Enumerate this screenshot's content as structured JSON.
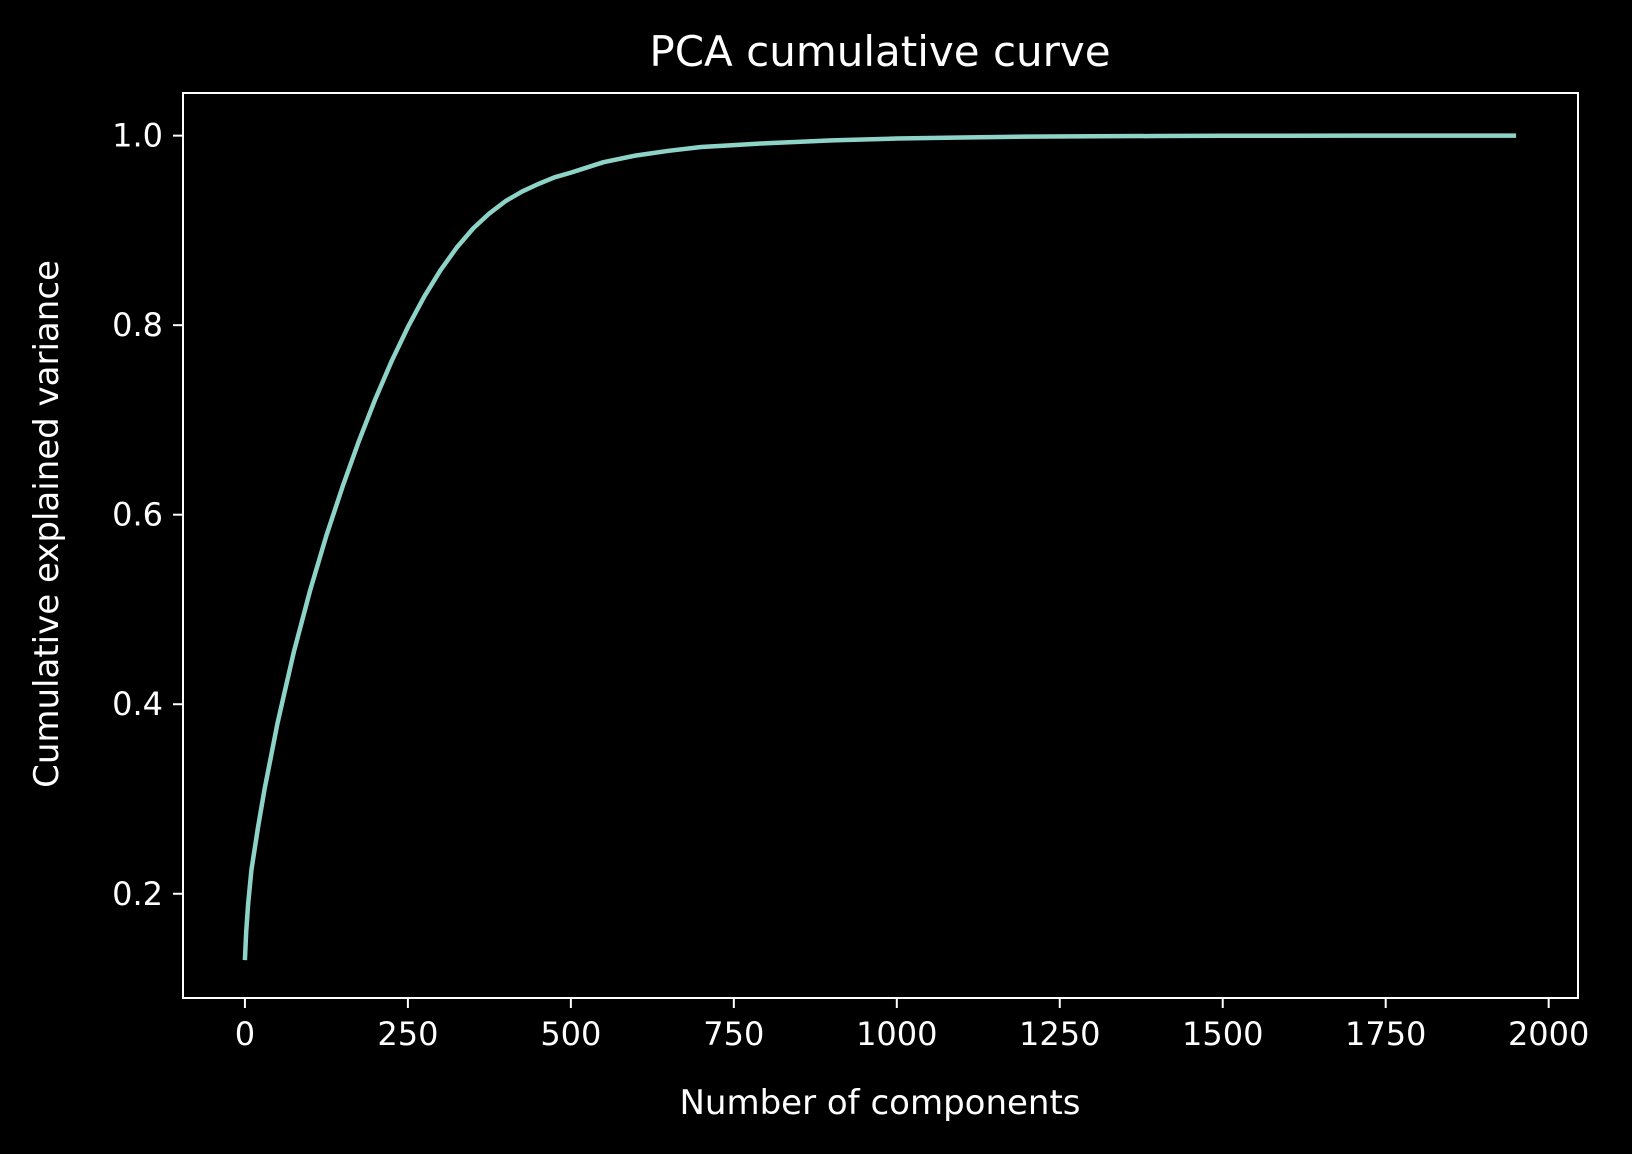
{
  "chart_data": {
    "type": "line",
    "title": "PCA cumulative curve",
    "xlabel": "Number of components",
    "ylabel": "Cumulative explained variance",
    "xlim": [
      -95,
      2045
    ],
    "ylim": [
      0.09,
      1.045
    ],
    "xticks": [
      0,
      250,
      500,
      750,
      1000,
      1250,
      1500,
      1750,
      2000
    ],
    "xtick_labels": [
      "0",
      "250",
      "500",
      "750",
      "1000",
      "1250",
      "1500",
      "1750",
      "2000"
    ],
    "yticks": [
      0.2,
      0.4,
      0.6,
      0.8,
      1.0
    ],
    "ytick_labels": [
      "0.2",
      "0.4",
      "0.6",
      "0.8",
      "1.0"
    ],
    "grid": false,
    "series": [
      {
        "color": "#8dd3c7",
        "x": [
          0,
          2,
          5,
          10,
          20,
          30,
          40,
          50,
          60,
          75,
          100,
          125,
          150,
          175,
          200,
          225,
          250,
          275,
          300,
          325,
          350,
          375,
          400,
          425,
          450,
          475,
          500,
          550,
          600,
          650,
          700,
          750,
          800,
          900,
          1000,
          1100,
          1200,
          1300,
          1400,
          1500,
          1600,
          1700,
          1800,
          1900,
          1950
        ],
        "y": [
          0.13,
          0.16,
          0.19,
          0.225,
          0.27,
          0.31,
          0.345,
          0.38,
          0.41,
          0.455,
          0.52,
          0.578,
          0.63,
          0.678,
          0.722,
          0.762,
          0.798,
          0.83,
          0.858,
          0.882,
          0.902,
          0.918,
          0.931,
          0.941,
          0.949,
          0.956,
          0.961,
          0.972,
          0.979,
          0.984,
          0.988,
          0.99,
          0.992,
          0.995,
          0.997,
          0.998,
          0.999,
          0.9993,
          0.9996,
          0.9998,
          0.9999,
          1.0,
          1.0,
          1.0,
          1.0
        ]
      }
    ]
  }
}
